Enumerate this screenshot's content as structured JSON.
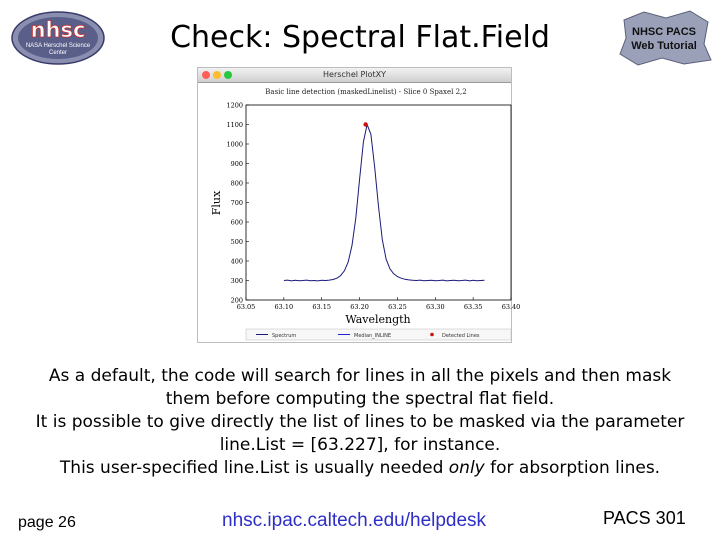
{
  "slide": {
    "title": "Check: Spectral Flat.Field",
    "logo_left": {
      "text_big": "nhsc",
      "text_small_1": "NASA Herschel Science",
      "text_small_2": "Center"
    },
    "logo_right": {
      "line1": "NHSC PACS",
      "line2": "Web Tutorial"
    }
  },
  "plot_window": {
    "window_title": "Herschel PlotXY",
    "colors": {
      "red": "#ff5f57",
      "yellow": "#febc2e",
      "green": "#28c840"
    }
  },
  "chart_data": {
    "type": "line",
    "title": "Basic line detection (maskedLinelist) - Slice 0 Spaxel 2,2",
    "xlabel": "Wavelength",
    "ylabel": "Flux",
    "xlim": [
      63.05,
      63.4
    ],
    "ylim": [
      200,
      1200
    ],
    "xticks": [
      "63.05",
      "63.10",
      "63.15",
      "63.20",
      "63.25",
      "63.30",
      "63.35",
      "63.40"
    ],
    "yticks": [
      "200",
      "300",
      "400",
      "500",
      "600",
      "700",
      "800",
      "900",
      "1000",
      "1100",
      "1200"
    ],
    "legend": [
      "Spectrum",
      "Median_INLINE",
      "Detected Lines"
    ],
    "legend_position": "bottom",
    "series": [
      {
        "name": "Spectrum",
        "color": "#1a1a7a",
        "x": [
          63.1,
          63.105,
          63.11,
          63.115,
          63.12,
          63.125,
          63.13,
          63.135,
          63.14,
          63.145,
          63.15,
          63.155,
          63.16,
          63.165,
          63.17,
          63.175,
          63.18,
          63.185,
          63.19,
          63.195,
          63.2,
          63.205,
          63.21,
          63.215,
          63.22,
          63.225,
          63.23,
          63.235,
          63.24,
          63.245,
          63.25,
          63.255,
          63.26,
          63.265,
          63.27,
          63.275,
          63.28,
          63.285,
          63.29,
          63.295,
          63.3,
          63.305,
          63.31,
          63.315,
          63.32,
          63.325,
          63.33,
          63.335,
          63.34,
          63.345,
          63.35,
          63.355,
          63.36,
          63.365
        ],
        "y": [
          300,
          302,
          298,
          301,
          299,
          300,
          302,
          299,
          300,
          298,
          301,
          300,
          302,
          305,
          312,
          325,
          350,
          395,
          480,
          620,
          820,
          1010,
          1100,
          1050,
          880,
          680,
          510,
          410,
          360,
          335,
          320,
          312,
          306,
          303,
          301,
          300,
          302,
          299,
          300,
          301,
          299,
          300,
          302,
          298,
          300,
          301,
          299,
          300,
          302,
          298,
          301,
          299,
          300,
          301
        ]
      }
    ],
    "detected_lines": [
      {
        "x": 63.208,
        "y": 1100
      }
    ]
  },
  "body": {
    "line1": "As a default, the code will search for lines in all the pixels and then mask",
    "line2": "them before computing the spectral flat field.",
    "line3": "It is possible to give directly the list of lines to be masked via the parameter",
    "line4": "line.List = [63.227], for instance.",
    "line5_before": "This user-specified line.List is usually needed ",
    "line5_emph": "only",
    "line5_after": " for absorption lines."
  },
  "footer": {
    "page": "page 26",
    "url": "nhsc.ipac.caltech.edu/helpdesk",
    "course": "PACS 301"
  }
}
